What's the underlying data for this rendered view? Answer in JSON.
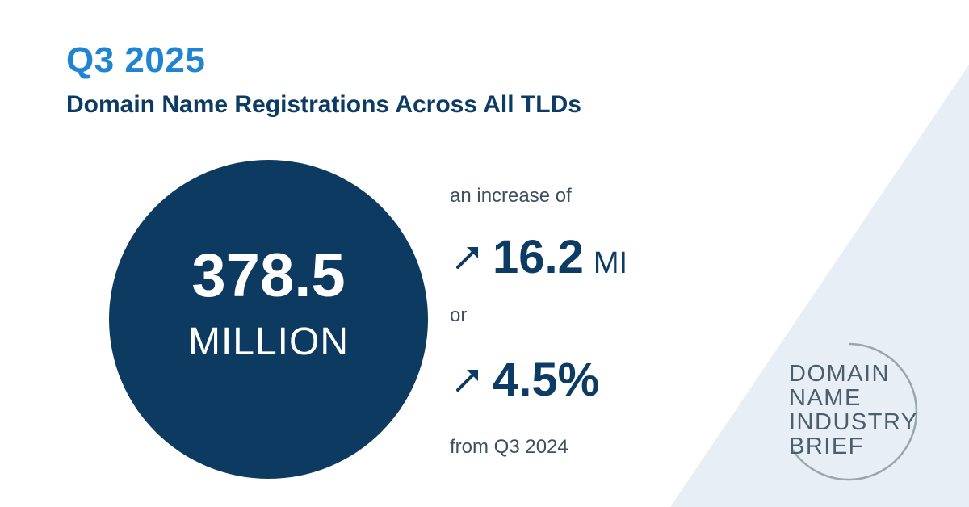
{
  "header": {
    "period": "Q3 2025",
    "title": "Domain Name Registrations Across All TLDs"
  },
  "total": {
    "value": "378.5",
    "unit": "MILLION"
  },
  "change": {
    "intro": "an increase of",
    "absolute_value": "16.2",
    "absolute_unit": "MI",
    "connector": "or",
    "percent_value": "4.5%",
    "comparison": "from Q3 2024"
  },
  "logo": {
    "lines": [
      "DOMAIN",
      "NAME",
      "INDUSTRY",
      "BRIEF"
    ]
  },
  "colors": {
    "accent_blue": "#1f84d1",
    "navy": "#0c3a61",
    "triangle_bg": "#e7eef6"
  },
  "icons": {
    "trend": "arrow-up-right-icon"
  }
}
